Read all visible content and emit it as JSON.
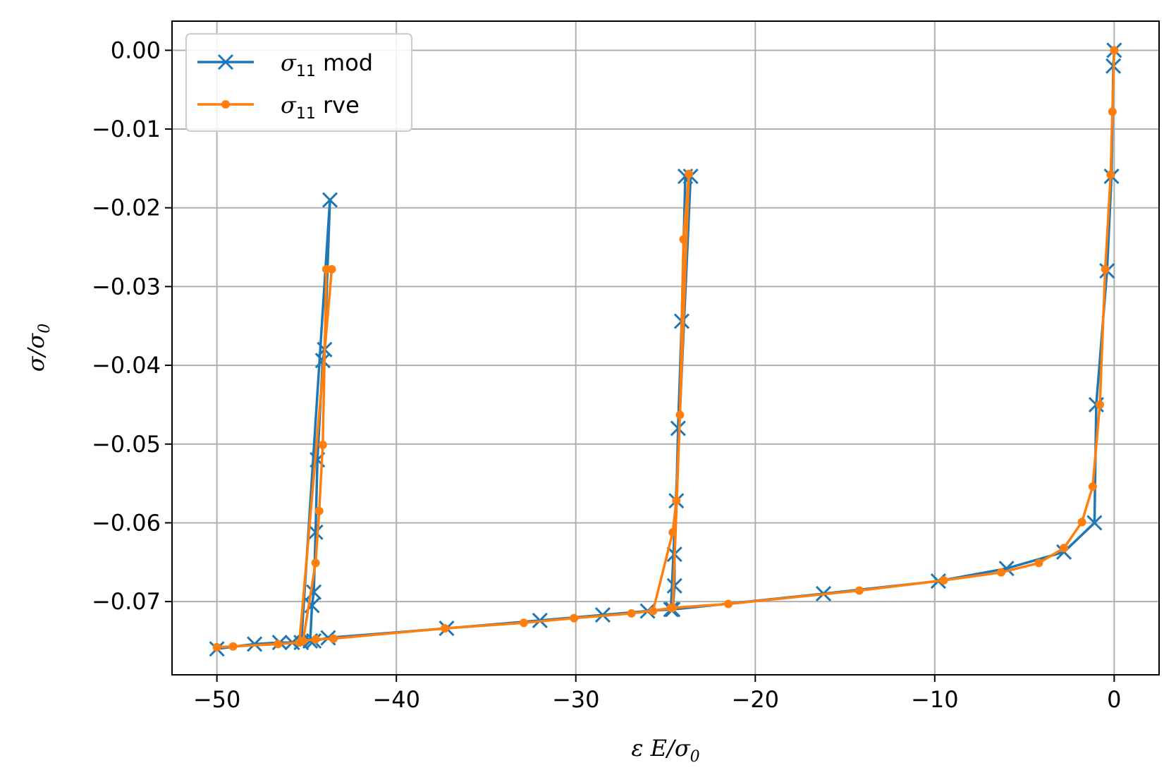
{
  "chart_data": {
    "type": "line",
    "xlabel": "ε E/σ0",
    "ylabel": "σ/σ0",
    "xlim": [
      -52.5,
      2.5
    ],
    "ylim": [
      -0.0793,
      0.0037
    ],
    "xticks": [
      -50,
      -40,
      -30,
      -20,
      -10,
      0
    ],
    "xtick_labels": [
      "−50",
      "−40",
      "−30",
      "−20",
      "−10",
      "0"
    ],
    "yticks": [
      0.0,
      -0.01,
      -0.02,
      -0.03,
      -0.04,
      -0.05,
      -0.06,
      -0.07
    ],
    "ytick_labels": [
      "0.00",
      "−0.01",
      "−0.02",
      "−0.03",
      "−0.04",
      "−0.05",
      "−0.06",
      "−0.07"
    ],
    "grid": true,
    "legend_position": "top-left",
    "legend_labels": [
      "σ11 mod",
      "σ11 rve"
    ],
    "series": [
      {
        "name": "σ11 mod",
        "color": "#1f77b4",
        "marker": "x",
        "x": [
          0.0,
          -0.05,
          -0.15,
          -0.4,
          -1.0,
          -1.1,
          -2.8,
          -6.0,
          -9.8,
          -16.2,
          -24.6,
          -24.5,
          -24.5,
          -24.4,
          -24.3,
          -24.1,
          -23.9,
          -23.6,
          -24.7,
          -26.0,
          -28.5,
          -32.0,
          -37.2,
          -43.8,
          -44.6,
          -44.8,
          -44.7,
          -44.6,
          -44.5,
          -44.4,
          -44.1,
          -44.0,
          -43.7,
          -45.3,
          -45.8,
          -46.5,
          -47.9,
          -50.0
        ],
        "y": [
          0.0,
          -0.002,
          -0.016,
          -0.028,
          -0.045,
          -0.06,
          -0.0637,
          -0.0658,
          -0.0674,
          -0.069,
          -0.071,
          -0.068,
          -0.064,
          -0.0572,
          -0.048,
          -0.0344,
          -0.016,
          -0.016,
          -0.071,
          -0.0712,
          -0.0717,
          -0.0724,
          -0.0734,
          -0.0746,
          -0.075,
          -0.075,
          -0.0705,
          -0.0688,
          -0.0612,
          -0.052,
          -0.0394,
          -0.038,
          -0.019,
          -0.0752,
          -0.0752,
          -0.0752,
          -0.0754,
          -0.076
        ]
      },
      {
        "name": "σ11 rve",
        "color": "#ff7f0e",
        "marker": "o",
        "x": [
          0.0,
          -0.1,
          -0.2,
          -0.5,
          -0.8,
          -1.2,
          -1.8,
          -2.8,
          -4.2,
          -6.3,
          -9.5,
          -14.2,
          -21.5,
          -24.7,
          -25.7,
          -24.6,
          -24.4,
          -24.2,
          -24.0,
          -23.7,
          -24.6,
          -26.9,
          -30.1,
          -32.9,
          -37.3,
          -43.5,
          -44.5,
          -45.2,
          -44.5,
          -44.3,
          -44.1,
          -43.9,
          -43.6,
          -45.4,
          -46.6,
          -49.1,
          -50.0
        ],
        "y": [
          0.0,
          -0.0078,
          -0.0158,
          -0.0278,
          -0.045,
          -0.0554,
          -0.0599,
          -0.0632,
          -0.0651,
          -0.0663,
          -0.0673,
          -0.0686,
          -0.0703,
          -0.0708,
          -0.0712,
          -0.0612,
          -0.0572,
          -0.0463,
          -0.024,
          -0.0157,
          -0.0708,
          -0.0715,
          -0.0721,
          -0.0727,
          -0.0734,
          -0.0747,
          -0.0748,
          -0.075,
          -0.0651,
          -0.0585,
          -0.0501,
          -0.0278,
          -0.0278,
          -0.0752,
          -0.0754,
          -0.0757,
          -0.0758
        ]
      }
    ]
  }
}
